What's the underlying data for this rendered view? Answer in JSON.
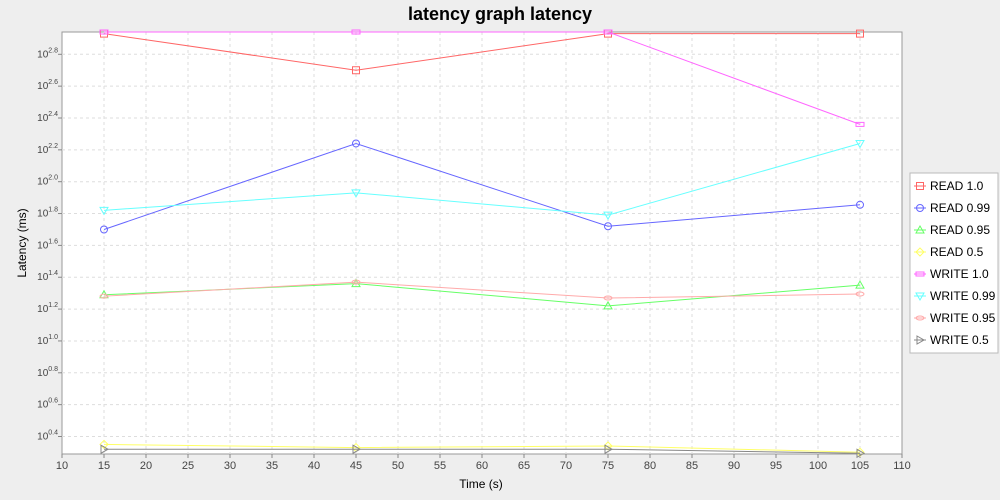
{
  "chart_data": {
    "type": "line",
    "title": "latency graph latency",
    "xlabel": "Time (s)",
    "ylabel": "Latency (ms)",
    "xlim": [
      10,
      110
    ],
    "x_ticks": [
      "10",
      "15",
      "20",
      "25",
      "30",
      "35",
      "40",
      "45",
      "50",
      "55",
      "60",
      "65",
      "70",
      "75",
      "80",
      "85",
      "90",
      "95",
      "100",
      "105",
      "110"
    ],
    "y_scale": "log10",
    "ylim": [
      1.95,
      871
    ],
    "y_tick_base": "10",
    "y_ticks": [
      {
        "exp": 0.4,
        "label": "0.4"
      },
      {
        "exp": 0.6,
        "label": "0.6"
      },
      {
        "exp": 0.8,
        "label": "0.8"
      },
      {
        "exp": 1.0,
        "label": "1.0"
      },
      {
        "exp": 1.2,
        "label": "1.2"
      },
      {
        "exp": 1.4,
        "label": "1.4"
      },
      {
        "exp": 1.6,
        "label": "1.6"
      },
      {
        "exp": 1.8,
        "label": "1.8"
      },
      {
        "exp": 2.0,
        "label": "2.0"
      },
      {
        "exp": 2.2,
        "label": "2.2"
      },
      {
        "exp": 2.4,
        "label": "2.4"
      },
      {
        "exp": 2.6,
        "label": "2.6"
      },
      {
        "exp": 2.8,
        "label": "2.8"
      }
    ],
    "grid": true,
    "legend_position": "right",
    "x": [
      15,
      45,
      75,
      105
    ],
    "series": [
      {
        "name": "READ 1.0",
        "color": "#ff6666",
        "marker": "square",
        "values": [
          851,
          501,
          851,
          851
        ]
      },
      {
        "name": "READ 0.99",
        "color": "#6666ff",
        "marker": "circle",
        "values": [
          50.1,
          173.8,
          52.5,
          71.6
        ]
      },
      {
        "name": "READ 0.95",
        "color": "#66ff66",
        "marker": "triangle-up",
        "values": [
          19.5,
          22.9,
          16.6,
          22.4
        ]
      },
      {
        "name": "READ 0.5",
        "color": "#ffff66",
        "marker": "diamond",
        "values": [
          2.24,
          2.14,
          2.19,
          2.0
        ]
      },
      {
        "name": "WRITE 1.0",
        "color": "#ff66ff",
        "marker": "rect",
        "values": [
          871,
          871,
          871,
          229
        ]
      },
      {
        "name": "WRITE 0.99",
        "color": "#66ffff",
        "marker": "triangle-down",
        "values": [
          66.1,
          85.1,
          61.7,
          173.8
        ]
      },
      {
        "name": "WRITE 0.95",
        "color": "#ffaaaa",
        "marker": "circle-small",
        "values": [
          19.1,
          23.4,
          18.6,
          19.7
        ]
      },
      {
        "name": "WRITE 0.5",
        "color": "#888888",
        "marker": "triangle-right",
        "values": [
          2.09,
          2.09,
          2.09,
          1.97
        ]
      }
    ]
  }
}
